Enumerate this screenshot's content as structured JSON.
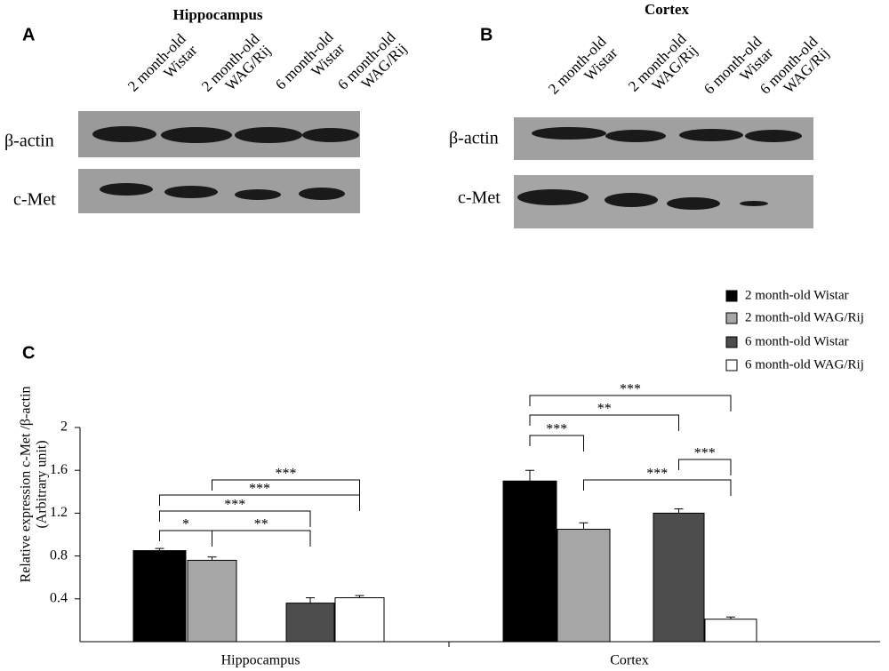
{
  "blots": [
    {
      "panel": "A",
      "title": "Hippocampus",
      "columns": [
        [
          "2 month-old",
          "Wistar"
        ],
        [
          "2 month-old",
          "WAG/Rij"
        ],
        [
          "6 month-old",
          "Wistar"
        ],
        [
          "6 month-old",
          "WAG/Rij"
        ]
      ],
      "rows": [
        "β-actin",
        "c-Met"
      ]
    },
    {
      "panel": "B",
      "title": "Cortex",
      "columns": [
        [
          "2 month-old",
          "Wistar"
        ],
        [
          "2 month-old",
          "WAG/Rij"
        ],
        [
          "6 month-old",
          "Wistar"
        ],
        [
          "6 month-old",
          "WAG/Rij"
        ]
      ],
      "rows": [
        "β-actin",
        "c-Met"
      ]
    }
  ],
  "chart_data": {
    "type": "bar",
    "panel": "C",
    "y_label": [
      "Relative expression c-Met /β-actin",
      "(Arbitrary unit)"
    ],
    "categories": [
      "Hippocampus",
      "Cortex"
    ],
    "series": [
      {
        "name": "2 month-old Wistar",
        "color": "#000000",
        "values": [
          0.85,
          1.5
        ],
        "errors": [
          0.02,
          0.1
        ]
      },
      {
        "name": "2 month-old WAG/Rij",
        "color": "#a6a6a6",
        "values": [
          0.76,
          1.05
        ],
        "errors": [
          0.03,
          0.06
        ]
      },
      {
        "name": "6 month-old Wistar",
        "color": "#4d4d4d",
        "values": [
          0.36,
          1.2
        ],
        "errors": [
          0.05,
          0.04
        ]
      },
      {
        "name": "6 month-old WAG/Rij",
        "color": "#ffffff",
        "values": [
          0.41,
          0.21
        ],
        "errors": [
          0.02,
          0.02
        ]
      }
    ],
    "ylim": [
      0,
      2
    ],
    "yticks": [
      0.4,
      0.8,
      1.2,
      1.6,
      2
    ],
    "annotations": [
      {
        "category": 0,
        "between": [
          0,
          1
        ],
        "label": "*"
      },
      {
        "category": 0,
        "between": [
          1,
          2
        ],
        "label": "**"
      },
      {
        "category": 0,
        "between": [
          0,
          2
        ],
        "label": "***"
      },
      {
        "category": 0,
        "between": [
          0,
          3
        ],
        "label": "***"
      },
      {
        "category": 0,
        "between": [
          1,
          3
        ],
        "label": "***"
      },
      {
        "category": 1,
        "between": [
          0,
          1
        ],
        "label": "***"
      },
      {
        "category": 1,
        "between": [
          1,
          3
        ],
        "label": "***"
      },
      {
        "category": 1,
        "between": [
          2,
          3
        ],
        "label": "***"
      },
      {
        "category": 1,
        "between": [
          0,
          2
        ],
        "label": "**"
      },
      {
        "category": 1,
        "between": [
          0,
          3
        ],
        "label": "***"
      }
    ]
  }
}
